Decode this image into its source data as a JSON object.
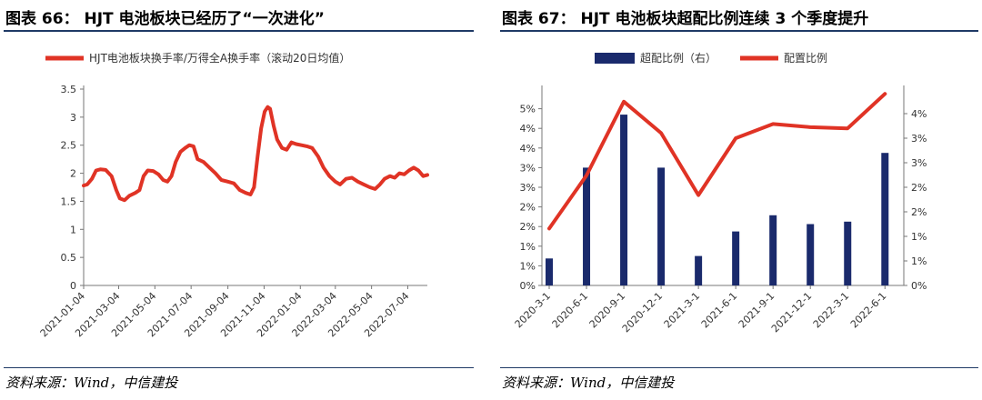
{
  "left": {
    "title": "图表 66： HJT 电池板块已经历了“一次进化”",
    "source": "资料来源：Wind，中信建投",
    "chart_data": {
      "type": "line",
      "legend": [
        "HJT电池板块换手率/万得全A换手率（滚动20日均值）"
      ],
      "legend_position": "top-center",
      "ylim": [
        0,
        3.5
      ],
      "yticks": [
        "0",
        "0.5",
        "1",
        "1.5",
        "2",
        "2.5",
        "3",
        "3.5"
      ],
      "xticks": [
        "2021-01-04",
        "2021-03-04",
        "2021-05-04",
        "2021-07-04",
        "2021-09-04",
        "2021-11-04",
        "2022-01-04",
        "2022-03-04",
        "2022-05-04",
        "2022-07-04"
      ],
      "series": [
        {
          "color": "#e03325",
          "points": [
            [
              "2021-01-04",
              1.78
            ],
            [
              "2021-01-10",
              1.8
            ],
            [
              "2021-01-18",
              1.9
            ],
            [
              "2021-01-25",
              2.05
            ],
            [
              "2021-02-01",
              2.07
            ],
            [
              "2021-02-10",
              2.06
            ],
            [
              "2021-02-20",
              1.95
            ],
            [
              "2021-02-28",
              1.7
            ],
            [
              "2021-03-06",
              1.55
            ],
            [
              "2021-03-14",
              1.52
            ],
            [
              "2021-03-22",
              1.6
            ],
            [
              "2021-04-01",
              1.65
            ],
            [
              "2021-04-08",
              1.7
            ],
            [
              "2021-04-15",
              1.95
            ],
            [
              "2021-04-22",
              2.05
            ],
            [
              "2021-05-01",
              2.04
            ],
            [
              "2021-05-10",
              1.98
            ],
            [
              "2021-05-18",
              1.88
            ],
            [
              "2021-05-25",
              1.85
            ],
            [
              "2021-06-01",
              1.95
            ],
            [
              "2021-06-08",
              2.2
            ],
            [
              "2021-06-16",
              2.38
            ],
            [
              "2021-06-24",
              2.45
            ],
            [
              "2021-07-01",
              2.5
            ],
            [
              "2021-07-08",
              2.48
            ],
            [
              "2021-07-15",
              2.25
            ],
            [
              "2021-07-25",
              2.2
            ],
            [
              "2021-08-04",
              2.1
            ],
            [
              "2021-08-14",
              2.0
            ],
            [
              "2021-08-24",
              1.88
            ],
            [
              "2021-09-04",
              1.85
            ],
            [
              "2021-09-14",
              1.82
            ],
            [
              "2021-09-24",
              1.7
            ],
            [
              "2021-10-04",
              1.65
            ],
            [
              "2021-10-12",
              1.62
            ],
            [
              "2021-10-18",
              1.75
            ],
            [
              "2021-10-24",
              2.3
            ],
            [
              "2021-10-30",
              2.8
            ],
            [
              "2021-11-05",
              3.1
            ],
            [
              "2021-11-10",
              3.18
            ],
            [
              "2021-11-14",
              3.15
            ],
            [
              "2021-11-20",
              2.85
            ],
            [
              "2021-11-26",
              2.6
            ],
            [
              "2021-12-04",
              2.45
            ],
            [
              "2021-12-12",
              2.42
            ],
            [
              "2021-12-20",
              2.55
            ],
            [
              "2021-12-28",
              2.52
            ],
            [
              "2022-01-06",
              2.5
            ],
            [
              "2022-01-15",
              2.48
            ],
            [
              "2022-01-24",
              2.45
            ],
            [
              "2022-02-03",
              2.3
            ],
            [
              "2022-02-12",
              2.1
            ],
            [
              "2022-02-22",
              1.95
            ],
            [
              "2022-03-04",
              1.85
            ],
            [
              "2022-03-12",
              1.8
            ],
            [
              "2022-03-22",
              1.9
            ],
            [
              "2022-04-01",
              1.92
            ],
            [
              "2022-04-11",
              1.85
            ],
            [
              "2022-04-21",
              1.8
            ],
            [
              "2022-05-01",
              1.75
            ],
            [
              "2022-05-10",
              1.72
            ],
            [
              "2022-05-18",
              1.8
            ],
            [
              "2022-05-26",
              1.9
            ],
            [
              "2022-06-04",
              1.95
            ],
            [
              "2022-06-12",
              1.92
            ],
            [
              "2022-06-20",
              2.0
            ],
            [
              "2022-06-28",
              1.98
            ],
            [
              "2022-07-06",
              2.05
            ],
            [
              "2022-07-14",
              2.1
            ],
            [
              "2022-07-22",
              2.05
            ],
            [
              "2022-07-30",
              1.95
            ],
            [
              "2022-08-06",
              1.97
            ]
          ]
        }
      ]
    }
  },
  "right": {
    "title": "图表 67： HJT 电池板块超配比例连续 3 个季度提升",
    "source": "资料来源：Wind，中信建投",
    "chart_data": {
      "type": "bar+line",
      "legend": [
        {
          "name": "超配比例（右）",
          "kind": "bar",
          "color": "#1a2a6c"
        },
        {
          "name": "配置比例",
          "kind": "line",
          "color": "#e03325"
        }
      ],
      "legend_position": "top-center",
      "categories": [
        "2020-3-1",
        "2020-6-1",
        "2020-9-1",
        "2020-12-1",
        "2021-3-1",
        "2021-6-1",
        "2021-9-1",
        "2021-12-1",
        "2022-3-1",
        "2022-6-1"
      ],
      "left_axis": {
        "ylim": [
          0,
          5
        ],
        "ticks": [
          "0%",
          "1%",
          "1%",
          "2%",
          "2%",
          "3%",
          "3%",
          "4%",
          "4%",
          "5%"
        ]
      },
      "right_axis": {
        "ylim": [
          0,
          4
        ],
        "ticks": [
          "0%",
          "1%",
          "1%",
          "2%",
          "2%",
          "3%",
          "3%",
          "4%"
        ]
      },
      "bar_values": [
        0.55,
        2.4,
        3.48,
        2.4,
        0.6,
        1.1,
        1.43,
        1.25,
        1.3,
        2.7
      ],
      "line_values": [
        1.45,
        2.8,
        4.68,
        3.88,
        2.3,
        3.75,
        4.11,
        4.03,
        4.0,
        4.88
      ]
    }
  }
}
